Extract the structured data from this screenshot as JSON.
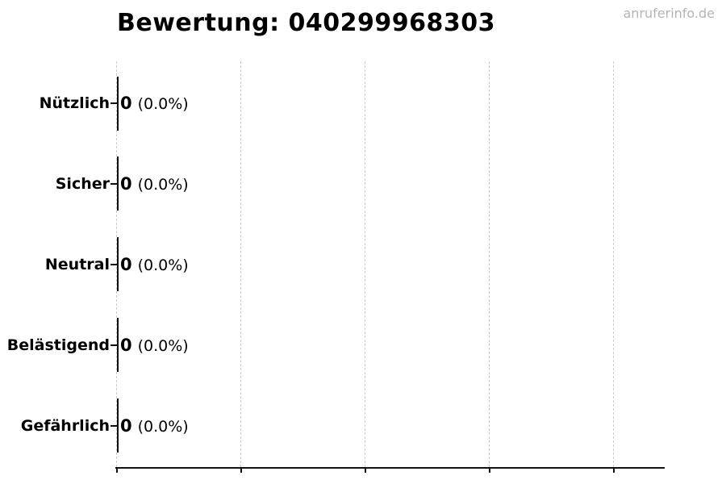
{
  "header": {
    "watermark": "anruferinfo.de"
  },
  "colors": {
    "background": "#ffffff",
    "text": "#000000",
    "grid": "#cccccc",
    "axis": "#111111",
    "bar_edge": "#111111",
    "watermark": "#b4b4b4"
  },
  "chart_data": {
    "type": "bar",
    "orientation": "horizontal",
    "title": "Bewertung: 040299968303",
    "categories": [
      "Nützlich",
      "Sicher",
      "Neutral",
      "Belästigend",
      "Gefährlich"
    ],
    "values": [
      0,
      0,
      0,
      0,
      0
    ],
    "percentages": [
      0.0,
      0.0,
      0.0,
      0.0,
      0.0
    ],
    "value_labels": [
      "0",
      "0",
      "0",
      "0",
      "0"
    ],
    "pct_labels": [
      "(0.0%)",
      "(0.0%)",
      "(0.0%)",
      "(0.0%)",
      "(0.0%)"
    ],
    "xlabel": "",
    "ylabel": "",
    "xlim": [
      0,
      1
    ],
    "x_tick_count": 5,
    "grid": "vertical-dashed",
    "legend": "none"
  }
}
